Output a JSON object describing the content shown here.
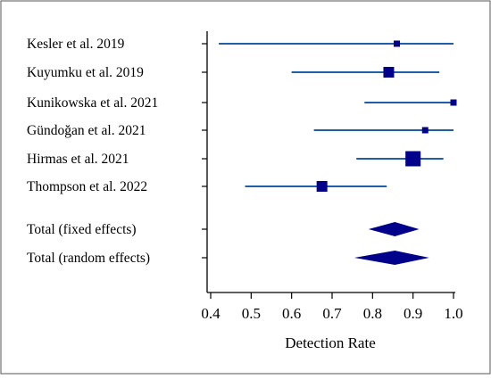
{
  "chart_data": {
    "type": "forest",
    "title": "",
    "xlabel": "Detection Rate",
    "ylabel": "",
    "xlim": [
      0.4,
      1.0
    ],
    "xticks": [
      0.4,
      0.5,
      0.6,
      0.7,
      0.8,
      0.9,
      1.0
    ],
    "xtick_labels": [
      "0.4",
      "0.5",
      "0.6",
      "0.7",
      "0.8",
      "0.9",
      "1.0"
    ],
    "grid": false,
    "studies": [
      {
        "label": "Kesler et al. 2019",
        "estimate": 0.86,
        "ci_low": 0.42,
        "ci_high": 1.0,
        "weight": "small"
      },
      {
        "label": "Kuyumku et al. 2019",
        "estimate": 0.84,
        "ci_low": 0.6,
        "ci_high": 0.965,
        "weight": "medium"
      },
      {
        "label": "Kunikowska et al. 2021",
        "estimate": 1.0,
        "ci_low": 0.78,
        "ci_high": 1.0,
        "weight": "small"
      },
      {
        "label": "Gündoğan et al. 2021",
        "estimate": 0.93,
        "ci_low": 0.655,
        "ci_high": 1.0,
        "weight": "small"
      },
      {
        "label": "Hirmas et al. 2021",
        "estimate": 0.9,
        "ci_low": 0.76,
        "ci_high": 0.975,
        "weight": "large"
      },
      {
        "label": "Thompson et al. 2022",
        "estimate": 0.675,
        "ci_low": 0.485,
        "ci_high": 0.835,
        "weight": "medium"
      }
    ],
    "totals": [
      {
        "label": "Total (fixed effects)",
        "estimate": 0.855,
        "ci_low": 0.79,
        "ci_high": 0.915
      },
      {
        "label": "Total (random effects)",
        "estimate": 0.855,
        "ci_low": 0.755,
        "ci_high": 0.94
      }
    ],
    "colors": {
      "marker": "#00008b",
      "ci_line": "#1f5fa8",
      "axis": "#000000",
      "frame": "#555555"
    }
  }
}
